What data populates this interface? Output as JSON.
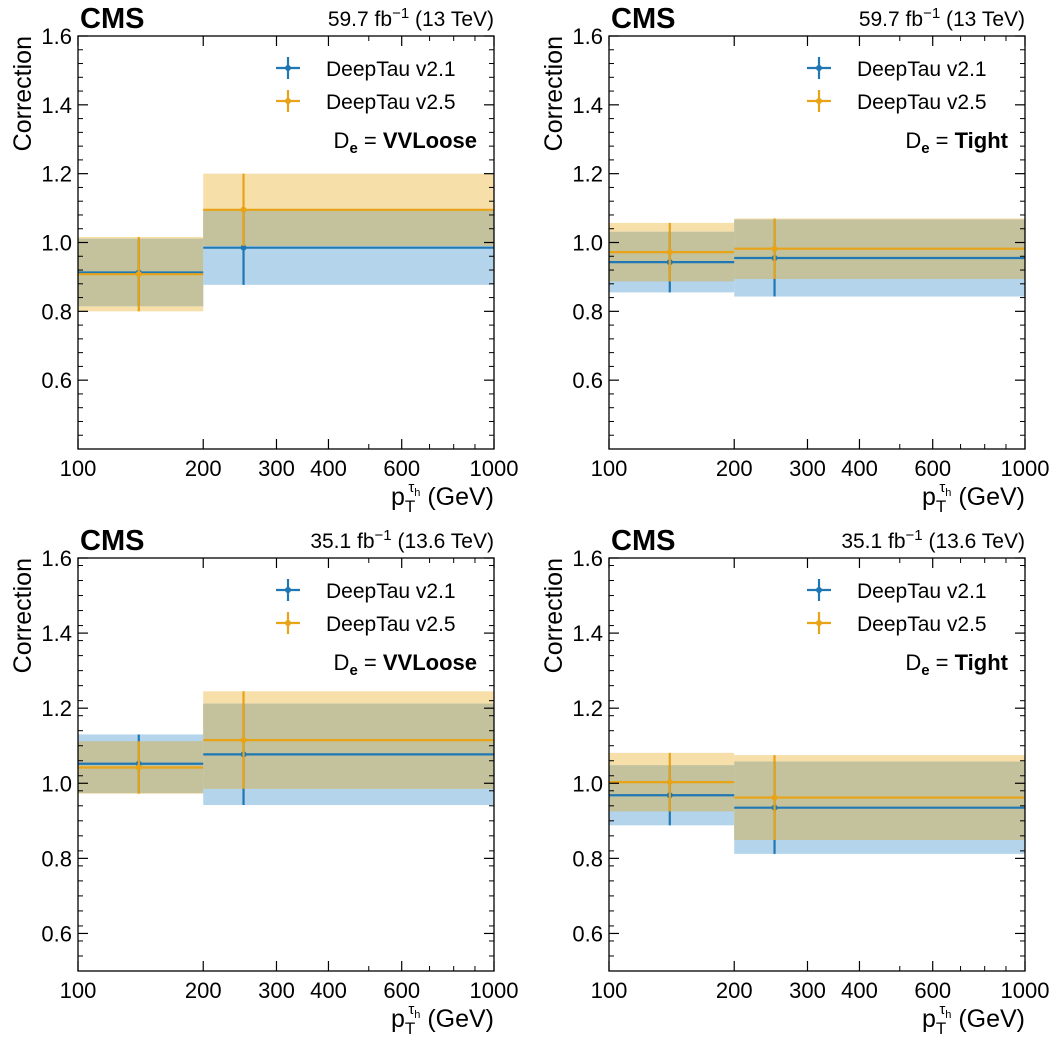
{
  "figure": {
    "experiment_label": "CMS",
    "y_axis_label": "Correction",
    "x_axis_label_main": "p",
    "x_axis_label_sub": "T",
    "x_axis_label_sup": "τ",
    "x_axis_label_sup_sub": "h",
    "x_axis_label_unit": "(GeV)",
    "wp_prefix_main": "D",
    "wp_prefix_sub": "e",
    "wp_prefix_eq": "=",
    "colors": {
      "v21": "#1f77b4",
      "v25": "#e8a317",
      "v21_band": "#b3d4ea",
      "v25_band": "#f7dfa9",
      "overlap_band": "#c3c29c"
    }
  },
  "chart_data": [
    {
      "type": "line",
      "lumi_value": "59.7 fb",
      "lumi_exp": "−1",
      "lumi_energy": "(13 TeV)",
      "wp": "VVLoose",
      "xscale": "log",
      "xlim": [
        100,
        1000
      ],
      "ylim": [
        0.4,
        1.6
      ],
      "x_ticks": [
        100,
        200,
        300,
        400,
        600,
        1000
      ],
      "x_tick_labels": [
        "100",
        "200",
        "300",
        "400",
        "600",
        "1000"
      ],
      "y_ticks": [
        0.6,
        0.8,
        1.0,
        1.2,
        1.4,
        1.6
      ],
      "y_tick_labels": [
        "0.6",
        "0.8",
        "1.0",
        "1.2",
        "1.4",
        "1.6"
      ],
      "bin_edges": [
        100,
        200,
        1000
      ],
      "series": [
        {
          "name": "DeepTau v2.1",
          "x": [
            140,
            250
          ],
          "values": [
            0.913,
            0.985
          ],
          "err_low": [
            0.098,
            0.108
          ],
          "err_high": [
            0.098,
            0.108
          ]
        },
        {
          "name": "DeepTau v2.5",
          "x": [
            140,
            250
          ],
          "values": [
            0.908,
            1.095
          ],
          "err_low": [
            0.108,
            0.105
          ],
          "err_high": [
            0.108,
            0.105
          ]
        }
      ]
    },
    {
      "type": "line",
      "lumi_value": "59.7 fb",
      "lumi_exp": "−1",
      "lumi_energy": "(13 TeV)",
      "wp": "Tight",
      "xscale": "log",
      "xlim": [
        100,
        1000
      ],
      "ylim": [
        0.4,
        1.6
      ],
      "x_ticks": [
        100,
        200,
        300,
        400,
        600,
        1000
      ],
      "x_tick_labels": [
        "100",
        "200",
        "300",
        "400",
        "600",
        "1000"
      ],
      "y_ticks": [
        0.6,
        0.8,
        1.0,
        1.2,
        1.4,
        1.6
      ],
      "y_tick_labels": [
        "0.6",
        "0.8",
        "1.0",
        "1.2",
        "1.4",
        "1.6"
      ],
      "bin_edges": [
        100,
        200,
        1000
      ],
      "series": [
        {
          "name": "DeepTau v2.1",
          "x": [
            140,
            250
          ],
          "values": [
            0.943,
            0.955
          ],
          "err_low": [
            0.088,
            0.112
          ],
          "err_high": [
            0.088,
            0.112
          ]
        },
        {
          "name": "DeepTau v2.5",
          "x": [
            140,
            250
          ],
          "values": [
            0.972,
            0.982
          ],
          "err_low": [
            0.085,
            0.088
          ],
          "err_high": [
            0.085,
            0.088
          ]
        }
      ]
    },
    {
      "type": "line",
      "lumi_value": "35.1 fb",
      "lumi_exp": "−1",
      "lumi_energy": "(13.6 TeV)",
      "wp": "VVLoose",
      "xscale": "log",
      "xlim": [
        100,
        1000
      ],
      "ylim": [
        0.5,
        1.6
      ],
      "x_ticks": [
        100,
        200,
        300,
        400,
        600,
        1000
      ],
      "x_tick_labels": [
        "100",
        "200",
        "300",
        "400",
        "600",
        "1000"
      ],
      "y_ticks": [
        0.6,
        0.8,
        1.0,
        1.2,
        1.4,
        1.6
      ],
      "y_tick_labels": [
        "0.6",
        "0.8",
        "1.0",
        "1.2",
        "1.4",
        "1.6"
      ],
      "bin_edges": [
        100,
        200,
        1000
      ],
      "series": [
        {
          "name": "DeepTau v2.1",
          "x": [
            140,
            250
          ],
          "values": [
            1.052,
            1.077
          ],
          "err_low": [
            0.078,
            0.135
          ],
          "err_high": [
            0.078,
            0.135
          ]
        },
        {
          "name": "DeepTau v2.5",
          "x": [
            140,
            250
          ],
          "values": [
            1.042,
            1.115
          ],
          "err_low": [
            0.07,
            0.13
          ],
          "err_high": [
            0.07,
            0.13
          ]
        }
      ]
    },
    {
      "type": "line",
      "lumi_value": "35.1 fb",
      "lumi_exp": "−1",
      "lumi_energy": "(13.6 TeV)",
      "wp": "Tight",
      "xscale": "log",
      "xlim": [
        100,
        1000
      ],
      "ylim": [
        0.5,
        1.6
      ],
      "x_ticks": [
        100,
        200,
        300,
        400,
        600,
        1000
      ],
      "x_tick_labels": [
        "100",
        "200",
        "300",
        "400",
        "600",
        "1000"
      ],
      "y_ticks": [
        0.6,
        0.8,
        1.0,
        1.2,
        1.4,
        1.6
      ],
      "y_tick_labels": [
        "0.6",
        "0.8",
        "1.0",
        "1.2",
        "1.4",
        "1.6"
      ],
      "bin_edges": [
        100,
        200,
        1000
      ],
      "series": [
        {
          "name": "DeepTau v2.1",
          "x": [
            140,
            250
          ],
          "values": [
            0.968,
            0.935
          ],
          "err_low": [
            0.08,
            0.123
          ],
          "err_high": [
            0.08,
            0.123
          ]
        },
        {
          "name": "DeepTau v2.5",
          "x": [
            140,
            250
          ],
          "values": [
            1.003,
            0.962
          ],
          "err_low": [
            0.078,
            0.113
          ],
          "err_high": [
            0.078,
            0.113
          ]
        }
      ]
    }
  ]
}
